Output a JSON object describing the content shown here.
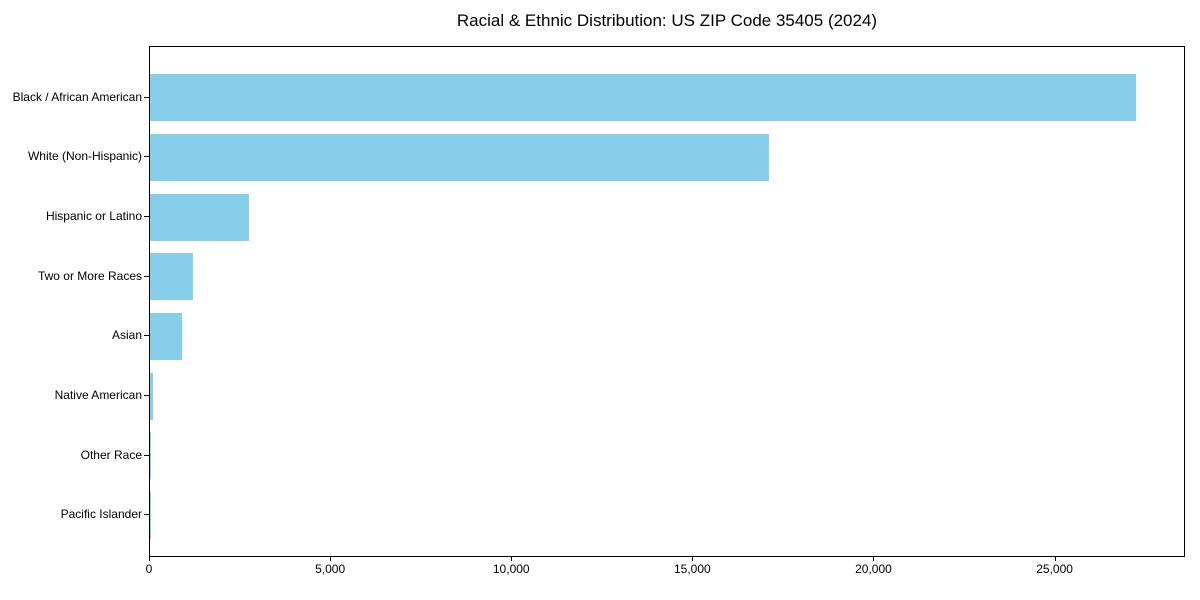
{
  "chart_data": {
    "type": "bar",
    "orientation": "horizontal",
    "title": "Racial & Ethnic Distribution: US ZIP Code 35405 (2024)",
    "categories": [
      "Black / African American",
      "White (Non-Hispanic)",
      "Hispanic or Latino",
      "Two or More Races",
      "Asian",
      "Native American",
      "Other Race",
      "Pacific Islander"
    ],
    "values": [
      27230,
      17080,
      2740,
      1195,
      890,
      80,
      30,
      10
    ],
    "x_ticks": [
      {
        "value": 0,
        "label": "0"
      },
      {
        "value": 5000,
        "label": "5,000"
      },
      {
        "value": 10000,
        "label": "10,000"
      },
      {
        "value": 15000,
        "label": "15,000"
      },
      {
        "value": 20000,
        "label": "20,000"
      },
      {
        "value": 25000,
        "label": "25,000"
      }
    ],
    "xlim": [
      0,
      28600
    ],
    "xlabel": "",
    "ylabel": "",
    "grid": false,
    "legend": "none",
    "bar_color": "#87CEEB",
    "spine_color": "#000000",
    "background_color": "#ffffff"
  }
}
